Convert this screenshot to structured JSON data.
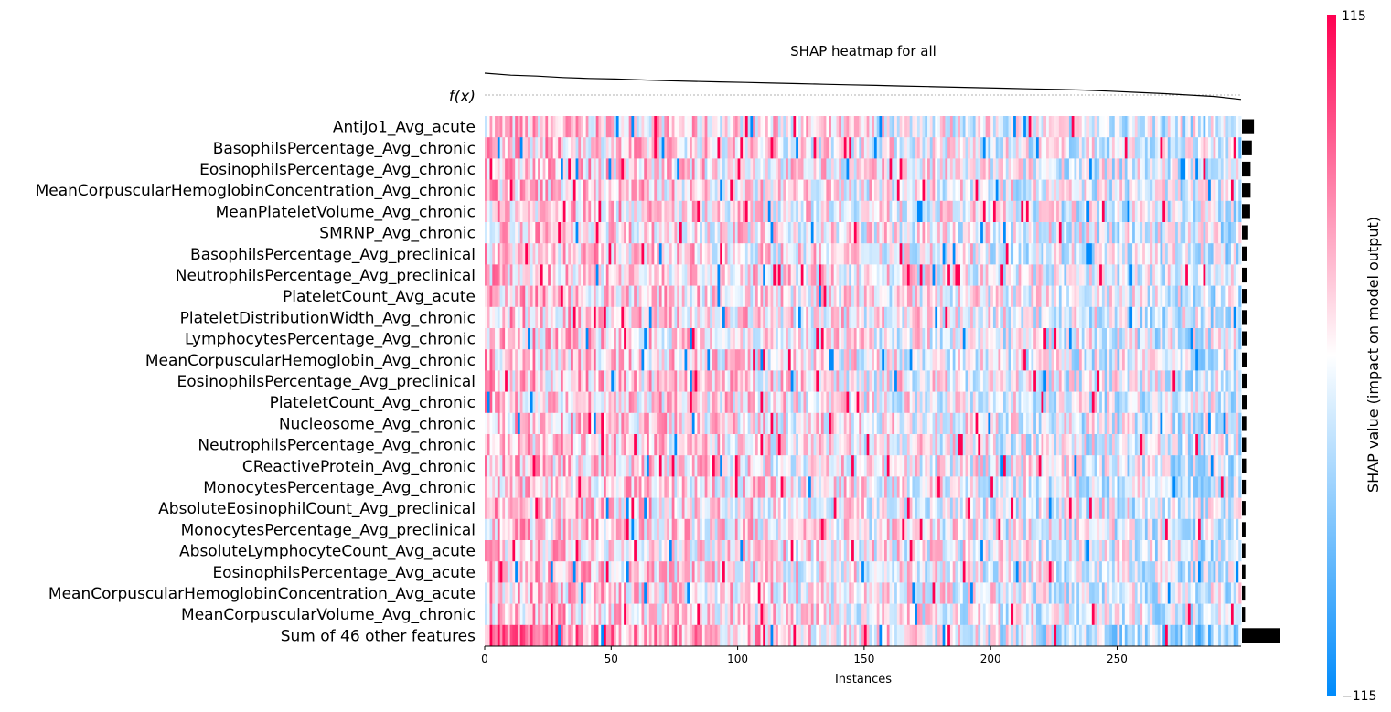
{
  "chart_data": {
    "type": "heatmap",
    "title": "SHAP heatmap for all",
    "xlabel": "Instances",
    "x_ticks": [
      0,
      50,
      100,
      150,
      200,
      250
    ],
    "x_range": [
      0,
      299
    ],
    "instance_count": 299,
    "fx_label": "f(x)",
    "fx_values": [
      1.0,
      0.93,
      0.9,
      0.85,
      0.82,
      0.8,
      0.77,
      0.74,
      0.72,
      0.7,
      0.68,
      0.66,
      0.64,
      0.62,
      0.6,
      0.58,
      0.56,
      0.54,
      0.52,
      0.5,
      0.48,
      0.46,
      0.44,
      0.42,
      0.38,
      0.34,
      0.3,
      0.25,
      0.2,
      0.1
    ],
    "features": [
      {
        "name": "AntiJo1_Avg_acute",
        "importance": 1.0
      },
      {
        "name": "BasophilsPercentage_Avg_chronic",
        "importance": 0.82
      },
      {
        "name": "EosinophilsPercentage_Avg_chronic",
        "importance": 0.72
      },
      {
        "name": "MeanCorpuscularHemoglobinConcentration_Avg_chronic",
        "importance": 0.72
      },
      {
        "name": "MeanPlateletVolume_Avg_chronic",
        "importance": 0.68
      },
      {
        "name": "SMRNP_Avg_chronic",
        "importance": 0.52
      },
      {
        "name": "BasophilsPercentage_Avg_preclinical",
        "importance": 0.44
      },
      {
        "name": "NeutrophilsPercentage_Avg_preclinical",
        "importance": 0.44
      },
      {
        "name": "PlateletCount_Avg_acute",
        "importance": 0.42
      },
      {
        "name": "PlateletDistributionWidth_Avg_chronic",
        "importance": 0.42
      },
      {
        "name": "LymphocytesPercentage_Avg_chronic",
        "importance": 0.4
      },
      {
        "name": "MeanCorpuscularHemoglobin_Avg_chronic",
        "importance": 0.4
      },
      {
        "name": "EosinophilsPercentage_Avg_preclinical",
        "importance": 0.38
      },
      {
        "name": "PlateletCount_Avg_chronic",
        "importance": 0.38
      },
      {
        "name": "Nucleosome_Avg_chronic",
        "importance": 0.36
      },
      {
        "name": "NeutrophilsPercentage_Avg_chronic",
        "importance": 0.34
      },
      {
        "name": "CReactiveProtein_Avg_chronic",
        "importance": 0.34
      },
      {
        "name": "MonocytesPercentage_Avg_chronic",
        "importance": 0.32
      },
      {
        "name": "AbsoluteEosinophilCount_Avg_preclinical",
        "importance": 0.3
      },
      {
        "name": "MonocytesPercentage_Avg_preclinical",
        "importance": 0.3
      },
      {
        "name": "AbsoluteLymphocyteCount_Avg_acute",
        "importance": 0.28
      },
      {
        "name": "EosinophilsPercentage_Avg_acute",
        "importance": 0.28
      },
      {
        "name": "MeanCorpuscularHemoglobinConcentration_Avg_acute",
        "importance": 0.26
      },
      {
        "name": "MeanCorpuscularVolume_Avg_chronic",
        "importance": 0.26
      },
      {
        "name": "Sum of 46 other features",
        "importance": 3.2
      }
    ],
    "colorbar": {
      "label": "SHAP value (impact on model output)",
      "max_label": "115",
      "min_label": "−115",
      "high_color": "#ff0051",
      "mid_color": "#ffffff",
      "low_color": "#008bfb"
    }
  }
}
